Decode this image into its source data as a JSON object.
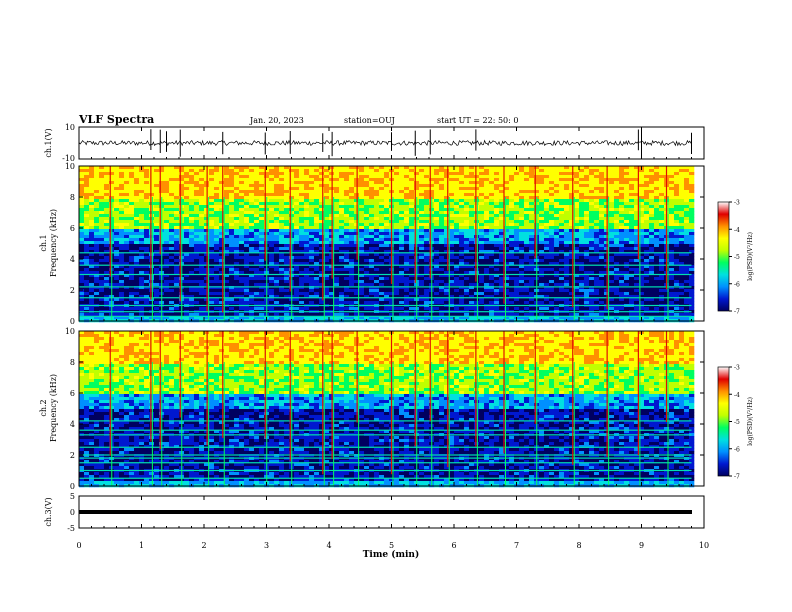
{
  "header": {
    "title": "VLF Spectra",
    "date": "Jan. 20, 2023",
    "station": "station=OUJ",
    "start": "start UT = 22: 50: 0"
  },
  "colorbar": {
    "ticks": [
      "-3",
      "-4",
      "-5",
      "-6",
      "-7"
    ],
    "label": "log(PSD)(V²/Hz)",
    "colors": [
      "#000060",
      "#0018d0",
      "#0090ff",
      "#00e0e0",
      "#00ff60",
      "#c0ff00",
      "#ffff00",
      "#ff9000",
      "#e00000",
      "#ffffff"
    ]
  },
  "chart_data": [
    {
      "type": "line",
      "name": "ch1-waveform",
      "ylabel": "ch.1(V)",
      "ylim": [
        -10,
        10
      ],
      "yticks": [
        "10",
        "-10"
      ],
      "xlim": [
        0,
        10
      ],
      "baseline": 0,
      "amplitude_range": [
        -3,
        3
      ],
      "spike_times_min": [
        1.15,
        1.3,
        1.4,
        1.62,
        2.3,
        2.98,
        3.38,
        3.9,
        4.05,
        5.0,
        5.38,
        5.62,
        6.35,
        8.95,
        9.0,
        9.8
      ]
    },
    {
      "type": "heatmap",
      "name": "ch1-spectrogram",
      "ylabel": "ch.1 Frequency (kHz)",
      "xlim": [
        0,
        10
      ],
      "ylim": [
        0,
        10
      ],
      "yticks": [
        "0",
        "2",
        "4",
        "6",
        "8",
        "10"
      ],
      "value_range": [
        -7,
        -3
      ],
      "data_end_min": 9.8,
      "noise_band_upper_khz": 6,
      "tone_lines_khz": [
        0.3,
        0.6,
        1.0,
        1.5,
        2.2,
        3.0,
        3.6,
        4.4
      ],
      "sferic_times_min": [
        0.5,
        1.15,
        1.3,
        1.62,
        2.05,
        2.3,
        2.98,
        3.38,
        3.9,
        4.05,
        4.45,
        5.0,
        5.38,
        5.62,
        5.9,
        6.35,
        6.8,
        7.3,
        7.9,
        8.45,
        8.95,
        9.4
      ]
    },
    {
      "type": "heatmap",
      "name": "ch2-spectrogram",
      "ylabel": "ch.2 Frequency (kHz)",
      "xlim": [
        0,
        10
      ],
      "ylim": [
        0,
        10
      ],
      "yticks": [
        "0",
        "2",
        "4",
        "6",
        "8",
        "10"
      ],
      "value_range": [
        -7,
        -3
      ],
      "data_end_min": 9.8,
      "noise_band_upper_khz": 6,
      "tone_lines_khz": [
        0.5,
        1.0,
        1.5,
        1.8,
        2.0,
        2.5,
        3.3,
        3.6,
        4.2
      ],
      "sferic_times_min": [
        0.5,
        1.15,
        1.3,
        1.62,
        2.05,
        2.3,
        2.98,
        3.38,
        3.9,
        4.05,
        4.45,
        5.0,
        5.38,
        5.62,
        5.9,
        6.35,
        6.8,
        7.3,
        7.9,
        8.45,
        8.95,
        9.4
      ]
    },
    {
      "type": "line",
      "name": "ch3-level",
      "ylabel": "ch.3(V)",
      "ylim": [
        -5,
        5
      ],
      "yticks": [
        "5",
        "0",
        "-5"
      ],
      "xlim": [
        0,
        10
      ],
      "level": 0,
      "xlabel": "Time (min)",
      "xticks": [
        "0",
        "1",
        "2",
        "3",
        "4",
        "5",
        "6",
        "7",
        "8",
        "9",
        "10"
      ]
    }
  ]
}
